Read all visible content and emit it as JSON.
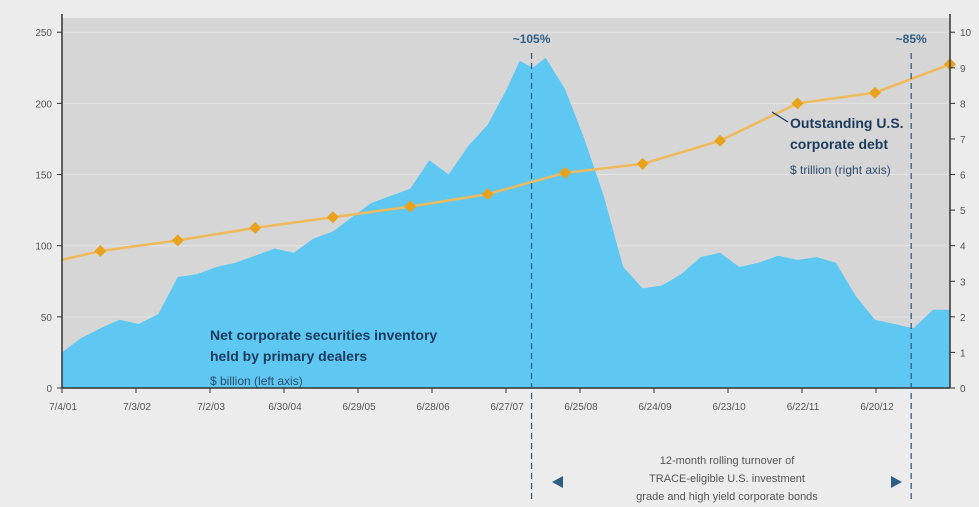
{
  "chart_data": {
    "type": "area",
    "x_tick_labels": [
      "7/4/01",
      "7/3/02",
      "7/2/03",
      "6/30/04",
      "6/29/05",
      "6/28/06",
      "6/27/07",
      "6/25/08",
      "6/24/09",
      "6/23/10",
      "6/22/11",
      "6/20/12"
    ],
    "left_axis": {
      "ylim": [
        0,
        260
      ],
      "ticks": [
        0,
        50,
        100,
        150,
        200,
        250
      ]
    },
    "right_axis": {
      "ylim": [
        0,
        10.4
      ],
      "ticks": [
        0,
        1,
        2,
        3,
        4,
        5,
        6,
        7,
        8,
        9,
        10
      ]
    },
    "series": [
      {
        "name": "Net corporate securities inventory held by primary dealers",
        "unit": "$ billion (left axis)",
        "axis": "left",
        "style": "area",
        "color": "#5ec8f2",
        "x": [
          "2001-07-04",
          "2001-10-01",
          "2002-01-01",
          "2002-04-01",
          "2002-07-01",
          "2002-10-01",
          "2003-01-01",
          "2003-04-01",
          "2003-07-01",
          "2003-10-01",
          "2004-01-01",
          "2004-04-01",
          "2004-07-01",
          "2004-10-01",
          "2005-01-01",
          "2005-04-01",
          "2005-07-01",
          "2005-10-01",
          "2006-01-01",
          "2006-04-01",
          "2006-07-01",
          "2006-10-01",
          "2007-01-01",
          "2007-04-01",
          "2007-06-01",
          "2007-08-01",
          "2007-10-01",
          "2008-01-01",
          "2008-04-01",
          "2008-07-01",
          "2008-10-01",
          "2009-01-01",
          "2009-04-01",
          "2009-07-01",
          "2009-10-01",
          "2010-01-01",
          "2010-04-01",
          "2010-07-01",
          "2010-10-01",
          "2011-01-01",
          "2011-04-01",
          "2011-07-01",
          "2011-10-01",
          "2012-01-01",
          "2012-04-01",
          "2012-07-01",
          "2012-10-01",
          "2012-12-20"
        ],
        "values": [
          25,
          35,
          42,
          48,
          45,
          52,
          78,
          80,
          85,
          88,
          93,
          98,
          95,
          105,
          110,
          120,
          130,
          135,
          140,
          160,
          150,
          170,
          185,
          210,
          230,
          225,
          232,
          210,
          175,
          135,
          85,
          70,
          72,
          80,
          92,
          95,
          85,
          88,
          93,
          90,
          92,
          88,
          65,
          48,
          45,
          42,
          55,
          55
        ]
      },
      {
        "name": "Outstanding U.S. corporate debt",
        "unit": "$ trillion (right axis)",
        "axis": "right",
        "style": "line-markers",
        "color": "#f0b95a",
        "marker_color": "#e8a21c",
        "x": [
          "2001-07-04",
          "2002-01-01",
          "2003-01-01",
          "2004-01-01",
          "2005-01-01",
          "2006-01-01",
          "2007-01-01",
          "2008-01-01",
          "2009-01-01",
          "2010-01-01",
          "2011-01-01",
          "2012-01-01",
          "2012-12-20"
        ],
        "values": [
          3.6,
          3.85,
          4.15,
          4.5,
          4.8,
          5.1,
          5.45,
          6.05,
          6.3,
          6.95,
          8.0,
          8.3,
          9.1
        ]
      }
    ],
    "series_labels": [
      {
        "name": "Net corporate securities inventory",
        "name2": "held by primary dealers",
        "unit": "$ billion (left axis)"
      },
      {
        "name": "Outstanding U.S.",
        "name2": "corporate debt",
        "unit": "$ trillion (right axis)"
      }
    ],
    "annotations": [
      {
        "text": "~105%",
        "x": "2007-07-27"
      },
      {
        "text": "~85%",
        "x": "2012-06-20"
      }
    ],
    "turnover_label": [
      "12-month rolling turnover of",
      "TRACE-eligible U.S. investment",
      "grade and high yield corporate bonds"
    ],
    "colors": {
      "plot_bg": "#d6d6d6",
      "page_bg": "#ececec",
      "area": "#5ec8f2",
      "line": "#f0b95a",
      "marker": "#e8a21c",
      "dashed": "#2f5d86",
      "axis": "#333333",
      "label_dark": "#1b3a5c"
    },
    "grid": true
  }
}
